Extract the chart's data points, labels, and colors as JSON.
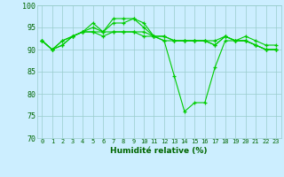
{
  "xlabel": "Humidité relative (%)",
  "xlim": [
    -0.5,
    23.5
  ],
  "ylim": [
    70,
    100
  ],
  "yticks": [
    70,
    75,
    80,
    85,
    90,
    95,
    100
  ],
  "xticks": [
    0,
    1,
    2,
    3,
    4,
    5,
    6,
    7,
    8,
    9,
    10,
    11,
    12,
    13,
    14,
    15,
    16,
    17,
    18,
    19,
    20,
    21,
    22,
    23
  ],
  "background_color": "#cceeff",
  "grid_color": "#99cccc",
  "line_color": "#00cc00",
  "lines": [
    [
      92,
      90,
      91,
      93,
      94,
      96,
      94,
      97,
      97,
      97,
      96,
      93,
      92,
      84,
      76,
      78,
      78,
      86,
      92,
      92,
      93,
      92,
      91,
      91
    ],
    [
      92,
      90,
      91,
      93,
      94,
      95,
      94,
      96,
      96,
      97,
      95,
      93,
      92,
      92,
      92,
      92,
      92,
      92,
      93,
      92,
      92,
      91,
      90,
      90
    ],
    [
      92,
      90,
      92,
      93,
      94,
      94,
      94,
      94,
      94,
      94,
      94,
      93,
      93,
      92,
      92,
      92,
      92,
      91,
      93,
      92,
      92,
      91,
      90,
      90
    ],
    [
      92,
      90,
      92,
      93,
      94,
      94,
      93,
      94,
      94,
      94,
      93,
      93,
      93,
      92,
      92,
      92,
      92,
      91,
      93,
      92,
      92,
      91,
      90,
      90
    ]
  ]
}
